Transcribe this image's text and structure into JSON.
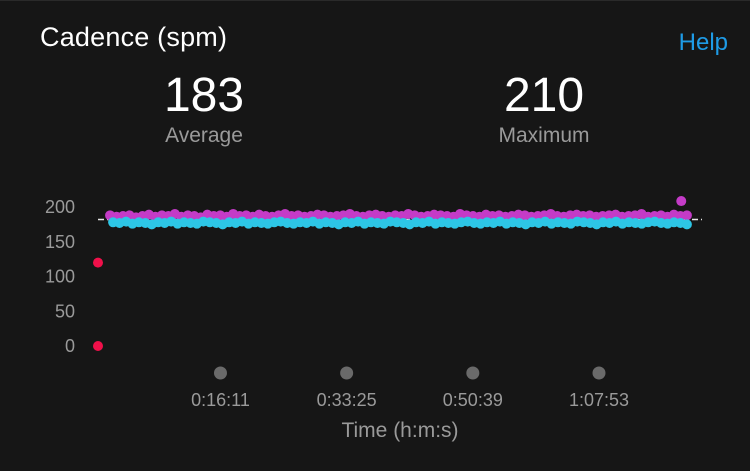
{
  "header": {
    "title": "Cadence (spm)",
    "help_label": "Help"
  },
  "stats": {
    "average": {
      "value": "183",
      "label": "Average"
    },
    "maximum": {
      "value": "210",
      "label": "Maximum"
    }
  },
  "colors": {
    "background": "#161616",
    "accent_link": "#1e9be6",
    "series_high": "#c43bc7",
    "series_low": "#2dc6e6",
    "series_outlier": "#f0104a",
    "trend_line": "#e6e6e6",
    "marker": "#6a6a6a",
    "muted_text": "#9a9a9a"
  },
  "chart_data": {
    "type": "scatter",
    "xlabel": "Time (h:m:s)",
    "ylabel": "",
    "ylim": [
      0,
      200
    ],
    "yticks": [
      "200",
      "150",
      "100",
      "50",
      "0"
    ],
    "xtick_labels": [
      "0:16:11",
      "0:33:25",
      "0:50:39",
      "1:07:53"
    ],
    "xtick_seconds": [
      971,
      2005,
      3039,
      4073
    ],
    "x_range_seconds": [
      0,
      4950
    ],
    "series": [
      {
        "values": [
          188,
          186,
          187,
          188,
          185,
          187,
          189,
          186,
          188,
          187,
          190,
          186,
          188,
          187,
          185,
          189,
          187,
          188,
          186,
          190,
          187,
          188,
          186,
          189,
          187,
          186,
          188,
          190,
          187,
          188,
          186,
          187,
          189,
          188,
          186,
          187,
          188,
          190,
          187,
          186,
          188,
          189,
          187,
          186,
          188,
          187,
          190,
          188,
          186,
          187,
          189,
          188,
          187,
          186,
          190,
          188,
          187,
          186,
          189,
          187,
          188,
          186,
          187,
          189,
          188,
          186,
          187,
          188,
          190,
          187,
          186,
          188,
          189,
          187,
          188,
          186,
          187,
          188,
          189,
          186,
          187,
          188,
          190,
          186,
          187,
          188,
          186,
          189,
          187,
          188
        ]
      },
      {
        "values": [
          178,
          177,
          179,
          176,
          178,
          177,
          175,
          178,
          177,
          179,
          176,
          178,
          177,
          176,
          179,
          178,
          177,
          175,
          178,
          177,
          179,
          176,
          178,
          177,
          176,
          178,
          179,
          177,
          176,
          178,
          177,
          179,
          176,
          178,
          177,
          175,
          178,
          177,
          179,
          176,
          178,
          177,
          176,
          179,
          178,
          177,
          175,
          178,
          177,
          179,
          176,
          178,
          177,
          176,
          178,
          179,
          177,
          176,
          178,
          177,
          179,
          176,
          178,
          177,
          175,
          178,
          177,
          179,
          176,
          178,
          177,
          176,
          179,
          178,
          177,
          175,
          178,
          177,
          179,
          176,
          178,
          177,
          176,
          178,
          179,
          177,
          176,
          178,
          177,
          175
        ]
      },
      {
        "points": [
          {
            "x": 0,
            "y": 120
          },
          {
            "x": 0,
            "y": 0
          }
        ]
      },
      {
        "points": [
          {
            "x": 4780,
            "y": 210
          }
        ]
      }
    ],
    "trend_value": 182,
    "grid": false
  }
}
